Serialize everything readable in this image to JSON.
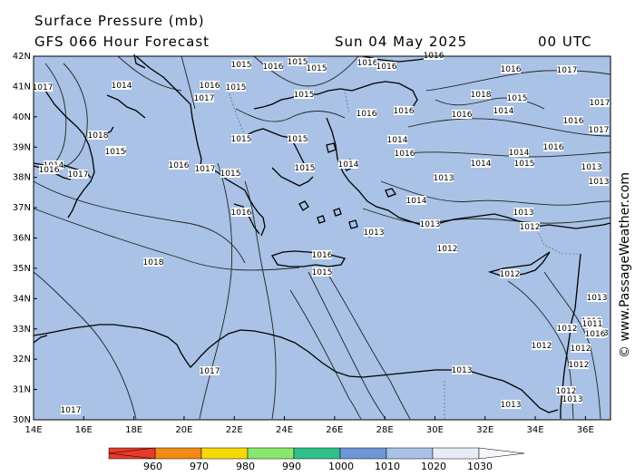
{
  "header": {
    "title": "Surface Pressure (mb)",
    "subtitle": "GFS 066 Hour Forecast",
    "date": "Sun 04 May 2025",
    "time": "00 UTC"
  },
  "watermark": "© www.PassageWeather.com",
  "lat_labels": [
    "42N",
    "41N",
    "40N",
    "39N",
    "38N",
    "37N",
    "36N",
    "35N",
    "34N",
    "33N",
    "32N",
    "31N",
    "30N"
  ],
  "lon_labels": [
    "14E",
    "16E",
    "18E",
    "20E",
    "22E",
    "24E",
    "26E",
    "28E",
    "30E",
    "32E",
    "34E",
    "36E"
  ],
  "colorbar": {
    "labels": [
      "960",
      "970",
      "980",
      "990",
      "1000",
      "1010",
      "1020",
      "1030"
    ],
    "colors": [
      "#e83a2c",
      "#f28a14",
      "#f7d90a",
      "#86e86c",
      "#2fc08a",
      "#6b97d6",
      "#a9c2e6",
      "#e6ecf8"
    ]
  },
  "colors": {
    "sea": "#a9c2e6",
    "land": "#a9c2e6",
    "coast": "#000000",
    "isobar": "#222222",
    "background": "#ffffff"
  },
  "isobar_labels": [
    {
      "t": "1015"
    },
    {
      "t": "1016"
    },
    {
      "t": "1015"
    },
    {
      "t": "1015"
    },
    {
      "t": "1016"
    },
    {
      "t": "1016"
    },
    {
      "t": "1016"
    },
    {
      "t": "1017"
    },
    {
      "t": "1017"
    },
    {
      "t": "1014"
    },
    {
      "t": "1016"
    },
    {
      "t": "1015"
    },
    {
      "t": "1017"
    },
    {
      "t": "1015"
    },
    {
      "t": "1018"
    },
    {
      "t": "1015"
    },
    {
      "t": "1016"
    },
    {
      "t": "1016"
    },
    {
      "t": "1016"
    },
    {
      "t": "1014"
    },
    {
      "t": "1017"
    },
    {
      "t": "1018"
    },
    {
      "t": "1017"
    },
    {
      "t": "1016"
    },
    {
      "t": "1016"
    },
    {
      "t": "1017"
    },
    {
      "t": "1015"
    },
    {
      "t": "1015"
    },
    {
      "t": "1015"
    },
    {
      "t": "1015"
    },
    {
      "t": "1014"
    },
    {
      "t": "1016"
    },
    {
      "t": "1016"
    },
    {
      "t": "1014"
    },
    {
      "t": "1015"
    },
    {
      "t": "1014"
    },
    {
      "t": "1013"
    },
    {
      "t": "1013"
    },
    {
      "t": "1014"
    },
    {
      "t": "1015"
    },
    {
      "t": "1014"
    },
    {
      "t": "1013"
    },
    {
      "t": "1017"
    },
    {
      "t": "1016"
    },
    {
      "t": "1014"
    },
    {
      "t": "1013"
    },
    {
      "t": "1013"
    },
    {
      "t": "1013"
    },
    {
      "t": "1012"
    },
    {
      "t": "1018"
    },
    {
      "t": "1016"
    },
    {
      "t": "1015"
    },
    {
      "t": "1012"
    },
    {
      "t": "1012"
    },
    {
      "t": "1012"
    },
    {
      "t": "1011"
    },
    {
      "t": "1012"
    },
    {
      "t": "1012"
    },
    {
      "t": "1012"
    },
    {
      "t": "1012"
    },
    {
      "t": "1018"
    },
    {
      "t": "1013"
    },
    {
      "t": "1017"
    },
    {
      "t": "1013"
    },
    {
      "t": "1012"
    },
    {
      "t": "1013"
    },
    {
      "t": "1015"
    },
    {
      "t": "1016"
    },
    {
      "t": "1016"
    },
    {
      "t": "1017"
    },
    {
      "t": "1016"
    },
    {
      "t": "1013"
    }
  ]
}
